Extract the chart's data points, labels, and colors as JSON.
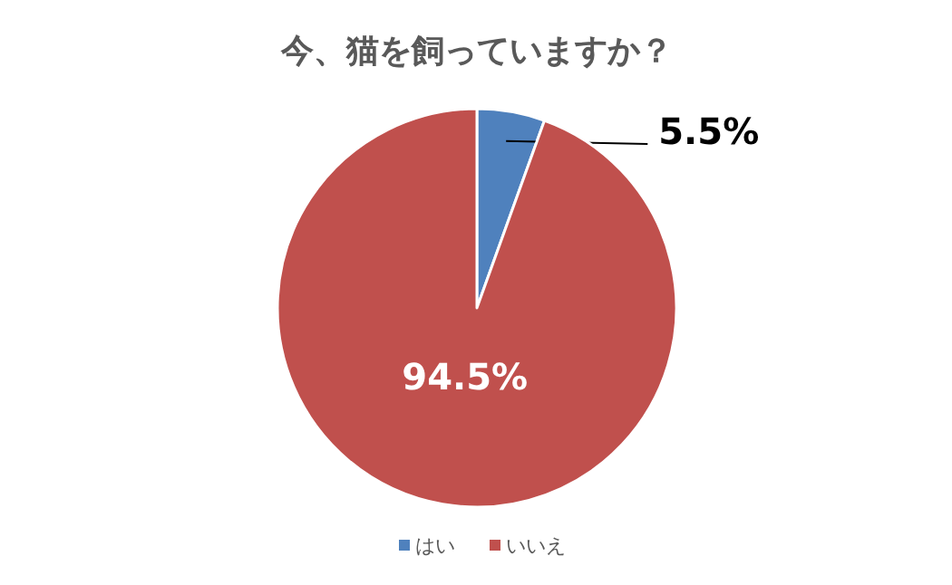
{
  "chart_data": {
    "type": "pie",
    "title": "今、猫を飼っていますか？",
    "categories": [
      "はい",
      "いいえ"
    ],
    "values": [
      5.5,
      94.5
    ],
    "value_labels": [
      "5.5%",
      "94.5%"
    ],
    "colors": [
      "#4f81bd",
      "#c0504d"
    ],
    "legend": "bottom"
  }
}
